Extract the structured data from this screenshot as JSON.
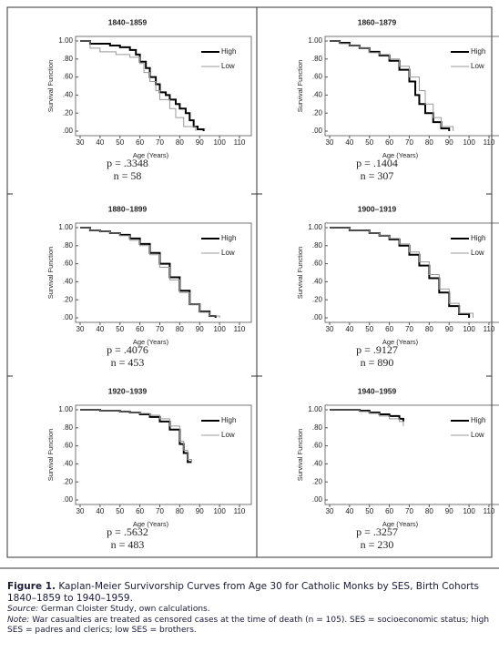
{
  "chart_data": [
    {
      "type": "line",
      "step": true,
      "title": "1840–1859",
      "ylabel": "Survival Function",
      "xlabel": "Age (Years)",
      "xlim": [
        30,
        110
      ],
      "xticks": [
        30,
        40,
        50,
        60,
        70,
        80,
        90,
        100,
        110
      ],
      "ylim": [
        0,
        1
      ],
      "yticks": [
        {
          "value": 0,
          "label": ".00"
        },
        {
          "value": 0.2,
          "label": ".20"
        },
        {
          "value": 0.4,
          "label": ".40"
        },
        {
          "value": 0.6,
          "label": ".60"
        },
        {
          "value": 0.8,
          "label": ".80"
        },
        {
          "value": 1,
          "label": "1.00"
        }
      ],
      "legend": "upper right",
      "series": [
        {
          "name": "High",
          "color": "#000000",
          "x": [
            30,
            35,
            45,
            50,
            55,
            58,
            60,
            63,
            65,
            68,
            70,
            73,
            75,
            78,
            80,
            83,
            85,
            87,
            89,
            92
          ],
          "values": [
            1,
            0.97,
            0.95,
            0.93,
            0.9,
            0.85,
            0.77,
            0.7,
            0.6,
            0.52,
            0.43,
            0.4,
            0.35,
            0.3,
            0.25,
            0.2,
            0.12,
            0.05,
            0.02,
            0
          ]
        },
        {
          "name": "Low",
          "color": "#999999",
          "x": [
            30,
            35,
            40,
            48,
            55,
            60,
            62,
            65,
            68,
            70,
            75,
            78,
            82,
            88
          ],
          "values": [
            1,
            0.92,
            0.88,
            0.85,
            0.82,
            0.75,
            0.65,
            0.55,
            0.45,
            0.35,
            0.25,
            0.15,
            0.05,
            0
          ]
        }
      ],
      "annotations": [
        "p = .3348",
        "n = 58"
      ]
    },
    {
      "type": "line",
      "step": true,
      "title": "1860–1879",
      "ylabel": "Survival Function",
      "xlabel": "Age (Years)",
      "xlim": [
        30,
        110
      ],
      "xticks": [
        30,
        40,
        50,
        60,
        70,
        80,
        90,
        100,
        110
      ],
      "ylim": [
        0,
        1
      ],
      "yticks": [
        {
          "value": 0,
          "label": ".00"
        },
        {
          "value": 0.2,
          "label": ".20"
        },
        {
          "value": 0.4,
          "label": ".40"
        },
        {
          "value": 0.6,
          "label": ".60"
        },
        {
          "value": 0.8,
          "label": ".80"
        },
        {
          "value": 1,
          "label": "1.00"
        }
      ],
      "legend": "upper right",
      "series": [
        {
          "name": "High",
          "color": "#000000",
          "x": [
            30,
            35,
            40,
            45,
            50,
            55,
            60,
            65,
            70,
            73,
            75,
            78,
            82,
            86,
            90
          ],
          "values": [
            1,
            0.98,
            0.95,
            0.92,
            0.88,
            0.84,
            0.78,
            0.68,
            0.55,
            0.4,
            0.3,
            0.2,
            0.1,
            0.03,
            0
          ]
        },
        {
          "name": "Low",
          "color": "#999999",
          "x": [
            30,
            35,
            40,
            45,
            50,
            55,
            60,
            65,
            70,
            75,
            78,
            82,
            86,
            92
          ],
          "values": [
            1,
            0.97,
            0.95,
            0.92,
            0.87,
            0.85,
            0.8,
            0.72,
            0.6,
            0.45,
            0.3,
            0.15,
            0.05,
            0
          ]
        }
      ],
      "annotations": [
        "p = .1404",
        "n = 307"
      ]
    },
    {
      "type": "line",
      "step": true,
      "title": "1880–1899",
      "ylabel": "Survival Function",
      "xlabel": "Age (Years)",
      "xlim": [
        30,
        110
      ],
      "xticks": [
        30,
        40,
        50,
        60,
        70,
        80,
        90,
        100,
        110
      ],
      "ylim": [
        0,
        1
      ],
      "yticks": [
        {
          "value": 0,
          "label": ".00"
        },
        {
          "value": 0.2,
          "label": ".20"
        },
        {
          "value": 0.4,
          "label": ".40"
        },
        {
          "value": 0.6,
          "label": ".60"
        },
        {
          "value": 0.8,
          "label": ".80"
        },
        {
          "value": 1,
          "label": "1.00"
        }
      ],
      "legend": "upper right",
      "series": [
        {
          "name": "High",
          "color": "#000000",
          "x": [
            30,
            35,
            40,
            45,
            50,
            55,
            60,
            65,
            70,
            75,
            80,
            85,
            90,
            95,
            98
          ],
          "values": [
            1,
            0.97,
            0.96,
            0.94,
            0.92,
            0.88,
            0.82,
            0.72,
            0.6,
            0.45,
            0.3,
            0.15,
            0.07,
            0.02,
            0
          ]
        },
        {
          "name": "Low",
          "color": "#999999",
          "x": [
            30,
            35,
            40,
            45,
            50,
            55,
            60,
            65,
            70,
            75,
            80,
            85,
            90,
            95,
            100
          ],
          "values": [
            1,
            0.97,
            0.96,
            0.94,
            0.91,
            0.86,
            0.8,
            0.7,
            0.56,
            0.42,
            0.28,
            0.15,
            0.06,
            0.02,
            0
          ]
        }
      ],
      "annotations": [
        "p = .4076",
        "n = 453"
      ]
    },
    {
      "type": "line",
      "step": true,
      "title": "1900–1919",
      "ylabel": "Survival Function",
      "xlabel": "Age (Years)",
      "xlim": [
        30,
        110
      ],
      "xticks": [
        30,
        40,
        50,
        60,
        70,
        80,
        90,
        100,
        110
      ],
      "ylim": [
        0,
        1
      ],
      "yticks": [
        {
          "value": 0,
          "label": ".00"
        },
        {
          "value": 0.2,
          "label": ".20"
        },
        {
          "value": 0.4,
          "label": ".40"
        },
        {
          "value": 0.6,
          "label": ".60"
        },
        {
          "value": 0.8,
          "label": ".80"
        },
        {
          "value": 1,
          "label": "1.00"
        }
      ],
      "legend": "upper right",
      "series": [
        {
          "name": "High",
          "color": "#000000",
          "x": [
            30,
            40,
            50,
            55,
            60,
            65,
            70,
            75,
            80,
            85,
            90,
            95,
            100
          ],
          "values": [
            1,
            0.97,
            0.94,
            0.91,
            0.87,
            0.8,
            0.7,
            0.58,
            0.44,
            0.28,
            0.13,
            0.04,
            0
          ]
        },
        {
          "name": "Low",
          "color": "#999999",
          "x": [
            30,
            40,
            50,
            55,
            60,
            65,
            70,
            75,
            80,
            85,
            90,
            95,
            102
          ],
          "values": [
            1,
            0.97,
            0.94,
            0.91,
            0.88,
            0.82,
            0.73,
            0.62,
            0.48,
            0.32,
            0.16,
            0.05,
            0
          ]
        }
      ],
      "annotations": [
        "p = .9127",
        "n = 890"
      ]
    },
    {
      "type": "line",
      "step": true,
      "title": "1920–1939",
      "ylabel": "Survival Function",
      "xlabel": "Age (Years)",
      "xlim": [
        30,
        110
      ],
      "xticks": [
        30,
        40,
        50,
        60,
        70,
        80,
        90,
        100,
        110
      ],
      "ylim": [
        0,
        1
      ],
      "yticks": [
        {
          "value": 0,
          "label": ".00"
        },
        {
          "value": 0.2,
          "label": ".20"
        },
        {
          "value": 0.4,
          "label": ".40"
        },
        {
          "value": 0.6,
          "label": ".60"
        },
        {
          "value": 0.8,
          "label": ".80"
        },
        {
          "value": 1,
          "label": "1.00"
        }
      ],
      "legend": "upper right",
      "series": [
        {
          "name": "High",
          "color": "#000000",
          "x": [
            30,
            40,
            50,
            55,
            60,
            65,
            70,
            75,
            80,
            82,
            84,
            86
          ],
          "values": [
            1,
            0.99,
            0.98,
            0.97,
            0.95,
            0.92,
            0.87,
            0.78,
            0.62,
            0.52,
            0.42,
            0.42
          ]
        },
        {
          "name": "Low",
          "color": "#999999",
          "x": [
            30,
            40,
            50,
            55,
            60,
            65,
            70,
            75,
            80,
            82,
            84,
            86
          ],
          "values": [
            1,
            0.99,
            0.98,
            0.97,
            0.96,
            0.94,
            0.9,
            0.82,
            0.65,
            0.55,
            0.45,
            0.42
          ]
        }
      ],
      "annotations": [
        "p = .5632",
        "n = 483"
      ]
    },
    {
      "type": "line",
      "step": true,
      "title": "1940–1959",
      "ylabel": "Survival Function",
      "xlabel": "Age (Years)",
      "xlim": [
        30,
        110
      ],
      "xticks": [
        30,
        40,
        50,
        60,
        70,
        80,
        90,
        100,
        110
      ],
      "ylim": [
        0,
        1
      ],
      "yticks": [
        {
          "value": 0,
          "label": ".00"
        },
        {
          "value": 0.2,
          "label": ".20"
        },
        {
          "value": 0.4,
          "label": ".40"
        },
        {
          "value": 0.6,
          "label": ".60"
        },
        {
          "value": 0.8,
          "label": ".80"
        },
        {
          "value": 1,
          "label": "1.00"
        }
      ],
      "legend": "upper right",
      "series": [
        {
          "name": "High",
          "color": "#000000",
          "x": [
            30,
            45,
            50,
            55,
            60,
            65,
            67
          ],
          "values": [
            1,
            0.99,
            0.97,
            0.95,
            0.93,
            0.9,
            0.87
          ]
        },
        {
          "name": "Low",
          "color": "#999999",
          "x": [
            30,
            45,
            50,
            55,
            60,
            65,
            67
          ],
          "values": [
            1,
            0.98,
            0.96,
            0.93,
            0.9,
            0.87,
            0.82
          ]
        }
      ],
      "annotations": [
        "p = .3257",
        "n = 230"
      ]
    }
  ],
  "caption": {
    "label": "Figure 1.",
    "text": "Kaplan-Meier Survivorship Curves from Age 30 for Catholic Monks by SES, Birth Cohorts 1840–1859 to 1940–1959.",
    "source_label": "Source:",
    "source": "German Cloister Study, own calculations.",
    "note_label": "Note:",
    "note": "War casualties are treated as censored cases at the time of death (n = 105). SES = socioeconomic status; high SES = padres and clerics; low SES = brothers."
  }
}
